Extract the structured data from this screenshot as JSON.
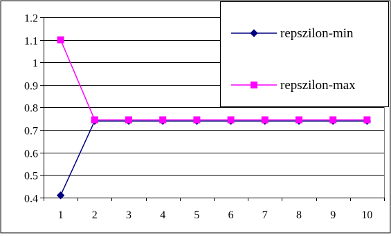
{
  "chart_data": {
    "type": "line",
    "title": "",
    "xlabel": "",
    "ylabel": "",
    "x": [
      1,
      2,
      3,
      4,
      5,
      6,
      7,
      8,
      9,
      10
    ],
    "ylim": [
      0.4,
      1.2
    ],
    "y_ticks": [
      0.4,
      0.5,
      0.6,
      0.7,
      0.8,
      0.9,
      1,
      1.1,
      1.2
    ],
    "grid": true,
    "legend": "top-right",
    "series": [
      {
        "name": "repszilon-min",
        "marker": "diamond",
        "color": "#000080",
        "values": [
          0.41,
          0.74,
          0.74,
          0.74,
          0.74,
          0.74,
          0.74,
          0.74,
          0.74,
          0.74
        ]
      },
      {
        "name": "repszilon-max",
        "marker": "square",
        "color": "#ff00ff",
        "values": [
          1.1,
          0.745,
          0.745,
          0.745,
          0.745,
          0.745,
          0.745,
          0.745,
          0.745,
          0.745
        ]
      }
    ]
  }
}
